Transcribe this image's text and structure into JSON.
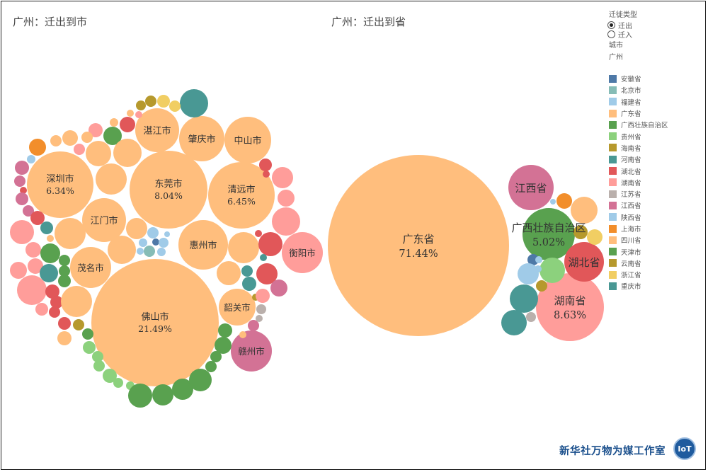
{
  "titles": {
    "left": "广州：迁出到市",
    "right": "广州：迁出到省"
  },
  "legend": {
    "filter_title": "迁徙类型",
    "filter_options": [
      {
        "label": "迁出",
        "selected": true
      },
      {
        "label": "迁入",
        "selected": false
      }
    ],
    "city_title": "城市",
    "city_value": "广州",
    "items": [
      {
        "label": "安徽省",
        "color": "#4e79a7"
      },
      {
        "label": "北京市",
        "color": "#86bcb6"
      },
      {
        "label": "福建省",
        "color": "#a0cbe8"
      },
      {
        "label": "广东省",
        "color": "#ffbe7d"
      },
      {
        "label": "广西壮族自治区",
        "color": "#59a14f"
      },
      {
        "label": "贵州省",
        "color": "#8cd17d"
      },
      {
        "label": "海南省",
        "color": "#b6992d"
      },
      {
        "label": "河南省",
        "color": "#499894"
      },
      {
        "label": "湖北省",
        "color": "#e15759"
      },
      {
        "label": "湖南省",
        "color": "#ff9d9a"
      },
      {
        "label": "江苏省",
        "color": "#bab0ac"
      },
      {
        "label": "江西省",
        "color": "#d37295"
      },
      {
        "label": "陕西省",
        "color": "#a0cbe8"
      },
      {
        "label": "上海市",
        "color": "#f28e2b"
      },
      {
        "label": "四川省",
        "color": "#ffbe7d"
      },
      {
        "label": "天津市",
        "color": "#59a14f"
      },
      {
        "label": "云南省",
        "color": "#b6992d"
      },
      {
        "label": "浙江省",
        "color": "#f1ce63"
      },
      {
        "label": "重庆市",
        "color": "#499894"
      }
    ]
  },
  "footer": {
    "org": "新华社万物为媒工作室",
    "logo": "IoT"
  },
  "chart_data": [
    {
      "type": "bubble",
      "title": "广州：迁出到市",
      "series": [
        {
          "name": "佛山市",
          "province": "广东省",
          "value": 21.49,
          "value_label": "21.49%"
        },
        {
          "name": "东莞市",
          "province": "广东省",
          "value": 8.04,
          "value_label": "8.04%"
        },
        {
          "name": "清远市",
          "province": "广东省",
          "value": 6.45,
          "value_label": "6.45%"
        },
        {
          "name": "深圳市",
          "province": "广东省",
          "value": 6.34,
          "value_label": "6.34%"
        },
        {
          "name": "湛江市",
          "province": "广东省"
        },
        {
          "name": "肇庆市",
          "province": "广东省"
        },
        {
          "name": "中山市",
          "province": "广东省"
        },
        {
          "name": "江门市",
          "province": "广东省"
        },
        {
          "name": "惠州市",
          "province": "广东省"
        },
        {
          "name": "茂名市",
          "province": "广东省"
        },
        {
          "name": "韶关市",
          "province": "广东省"
        },
        {
          "name": "衡阳市",
          "province": "湖南省"
        },
        {
          "name": "赣州市",
          "province": "江西省"
        }
      ]
    },
    {
      "type": "bubble",
      "title": "广州：迁出到省",
      "series": [
        {
          "name": "广东省",
          "value": 71.44,
          "value_label": "71.44%"
        },
        {
          "name": "湖南省",
          "value": 8.63,
          "value_label": "8.63%"
        },
        {
          "name": "广西壮族自治区",
          "value": 5.02,
          "value_label": "5.02%"
        },
        {
          "name": "江西省"
        },
        {
          "name": "湖北省"
        }
      ]
    }
  ]
}
